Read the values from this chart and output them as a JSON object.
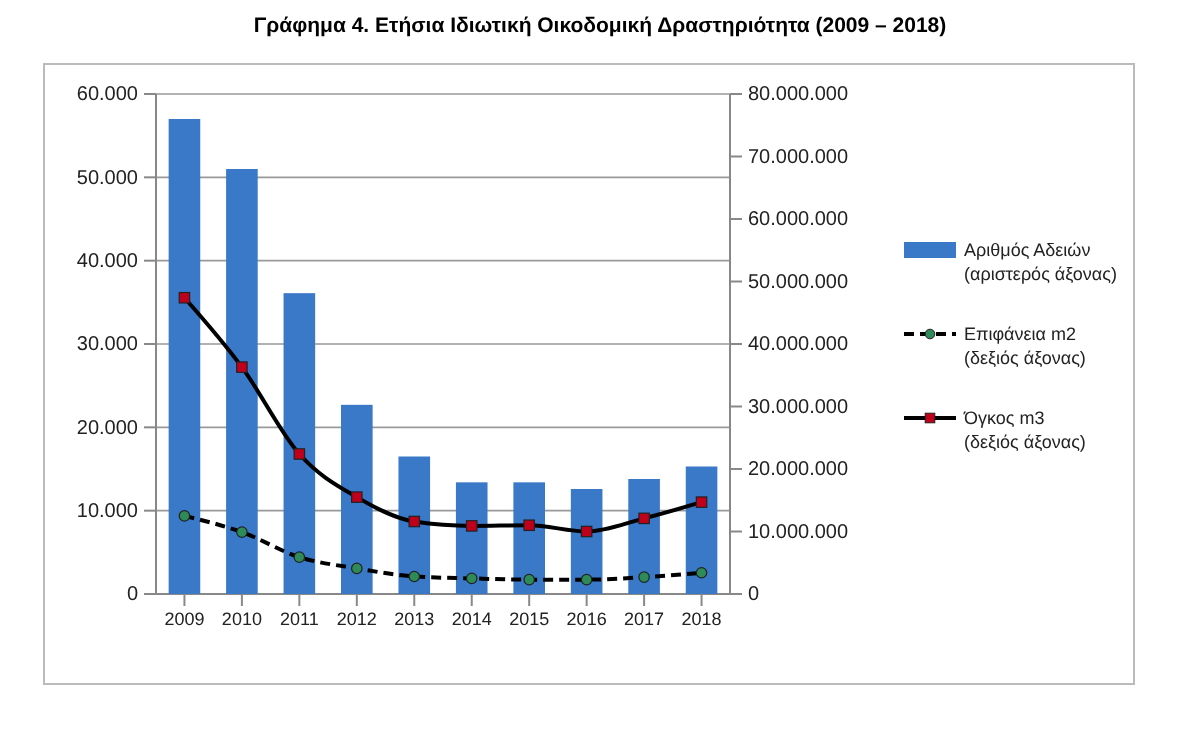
{
  "chart_data": {
    "type": "bar",
    "title": "Γράφημα 4. Ετήσια Ιδιωτική Οικοδομική Δραστηριότητα (2009 – 2018)",
    "categories": [
      "2009",
      "2010",
      "2011",
      "2012",
      "2013",
      "2014",
      "2015",
      "2016",
      "2017",
      "2018"
    ],
    "series": [
      {
        "name": "Αριθμός Αδειών (αριστερός άξονας)",
        "color": "#3a78c8",
        "values": [
          57000,
          51000,
          36100,
          22700,
          16500,
          13400,
          13400,
          12600,
          13800,
          15300
        ]
      },
      {
        "name": "Επιφάνεια m2 (δεξιός άξονας)",
        "type": "line",
        "axis": "y2",
        "color": "#000000",
        "line_style": "dashed",
        "marker": "circle",
        "values": [
          12500000,
          9900000,
          5900000,
          4100000,
          2800000,
          2500000,
          2300000,
          2300000,
          2700000,
          3400000
        ]
      },
      {
        "name": "Όγκος m3 (δεξιός άξονας)",
        "type": "line",
        "axis": "y2",
        "color": "#000000",
        "line_style": "solid",
        "marker": "square",
        "values": [
          47400000,
          36300000,
          22400000,
          15500000,
          11600000,
          10900000,
          11000000,
          10000000,
          12100000,
          14700000
        ]
      }
    ],
    "ylim": [
      0,
      60000
    ],
    "yticks": [
      0,
      {
        "value": 10000,
        "label": "10.000"
      },
      {
        "value": 20000,
        "label": "20.000"
      },
      {
        "value": 30000,
        "label": "30.000"
      },
      {
        "value": 40000,
        "label": "40.000"
      },
      {
        "value": 50000,
        "label": "50.000"
      },
      {
        "value": 60000,
        "label": "60.000"
      }
    ],
    "y2lim": [
      0,
      80000000
    ],
    "y2ticks": [
      0,
      {
        "value": 10000000,
        "label": "10.000.000"
      },
      {
        "value": 20000000,
        "label": "20.000.000"
      },
      {
        "value": 30000000,
        "label": "30.000.000"
      },
      {
        "value": 40000000,
        "label": "40.000.000"
      },
      {
        "value": 50000000,
        "label": "50.000.000"
      },
      {
        "value": 60000000,
        "label": "60.000.000"
      },
      {
        "value": 70000000,
        "label": "70.000.000"
      },
      {
        "value": 80000000,
        "label": "80.000.000"
      }
    ],
    "grid": "y",
    "legend": "right"
  }
}
